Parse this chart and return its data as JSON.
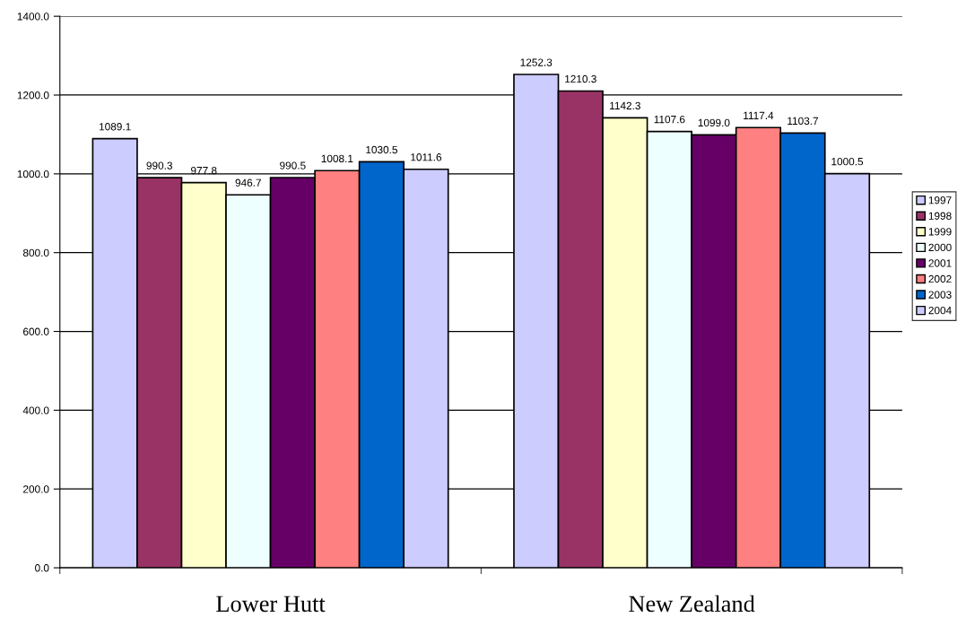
{
  "chart_data": {
    "type": "bar",
    "categories": [
      "Lower Hutt",
      "New Zealand"
    ],
    "series": [
      {
        "name": "1997",
        "color": "#ccccff",
        "values": [
          1089.1,
          1252.3
        ],
        "value_labels": [
          "1089.1",
          "1252.3"
        ]
      },
      {
        "name": "1998",
        "color": "#993366",
        "values": [
          990.3,
          1210.3
        ],
        "value_labels": [
          "990.3",
          "1210.3"
        ]
      },
      {
        "name": "1999",
        "color": "#ffffcc",
        "values": [
          977.8,
          1142.3
        ],
        "value_labels": [
          "977.8",
          "1142.3"
        ]
      },
      {
        "name": "2000",
        "color": "#eeffff",
        "values": [
          946.7,
          1107.6
        ],
        "value_labels": [
          "946.7",
          "1107.6"
        ]
      },
      {
        "name": "2001",
        "color": "#660066",
        "values": [
          990.5,
          1099.0
        ],
        "value_labels": [
          "990.5",
          "1099.0"
        ]
      },
      {
        "name": "2002",
        "color": "#ff8080",
        "values": [
          1008.1,
          1117.4
        ],
        "value_labels": [
          "1008.1",
          "1117.4"
        ]
      },
      {
        "name": "2003",
        "color": "#0066cc",
        "values": [
          1030.5,
          1103.7
        ],
        "value_labels": [
          "1030.5",
          "1103.7"
        ]
      },
      {
        "name": "2004",
        "color": "#ccccff",
        "values": [
          1011.6,
          1000.5
        ],
        "value_labels": [
          "1011.6",
          "1000.5"
        ]
      }
    ],
    "ylim": [
      0,
      1400
    ],
    "yticks": [
      {
        "value": 0,
        "label": "0.0"
      },
      {
        "value": 200,
        "label": "200.0"
      },
      {
        "value": 400,
        "label": "400.0"
      },
      {
        "value": 600,
        "label": "600.0"
      },
      {
        "value": 800,
        "label": "800.0"
      },
      {
        "value": 1000,
        "label": "1000.0"
      },
      {
        "value": 1200,
        "label": "1200.0"
      },
      {
        "value": 1400,
        "label": "1400.0"
      }
    ],
    "grid": "y",
    "legend": "right"
  }
}
